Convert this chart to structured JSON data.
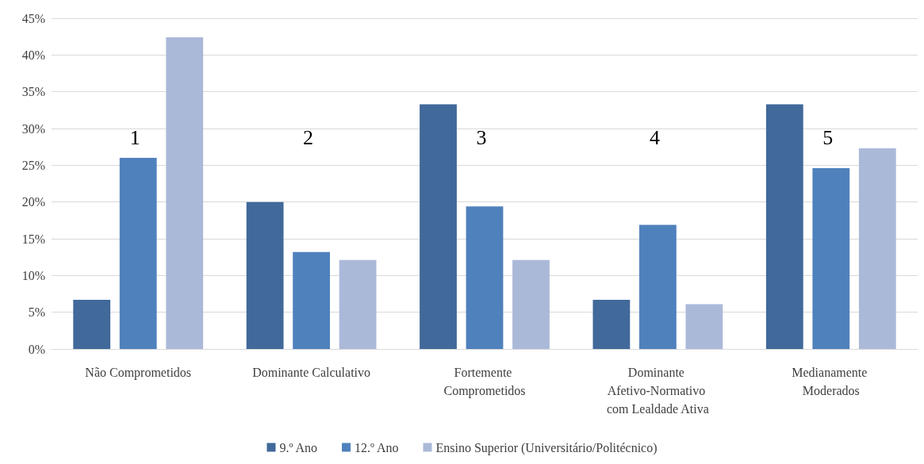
{
  "chart_data": {
    "type": "bar",
    "categories": [
      "Não Comprometidos",
      "Dominante Calculativo",
      "Fortemente Comprometidos",
      "Dominante Afetivo-Normativo com Lealdade Ativa",
      "Medianamente Moderados"
    ],
    "series": [
      {
        "name": "9.º Ano",
        "color": "#41699a",
        "values": [
          6.7,
          20,
          33.3,
          6.7,
          33.3
        ]
      },
      {
        "name": "12.º Ano",
        "color": "#4f81bd",
        "values": [
          26,
          13.2,
          19.4,
          16.9,
          24.6
        ]
      },
      {
        "name": "Ensino Superior (Universitário/Politécnico)",
        "color": "#abb9d9",
        "values": [
          42.4,
          12.1,
          12.1,
          6.1,
          27.3
        ]
      }
    ],
    "ylim": [
      0,
      45
    ],
    "yticks": [
      {
        "value": 0,
        "label": "0%"
      },
      {
        "value": 5,
        "label": "5%"
      },
      {
        "value": 10,
        "label": "10%"
      },
      {
        "value": 15,
        "label": "15%"
      },
      {
        "value": 20,
        "label": "20%"
      },
      {
        "value": 25,
        "label": "25%"
      },
      {
        "value": 30,
        "label": "30%"
      },
      {
        "value": 35,
        "label": "35%"
      },
      {
        "value": 40,
        "label": "40%"
      },
      {
        "value": 45,
        "label": "45%"
      }
    ],
    "grid": "y",
    "legend": "bottom",
    "annotations": [
      "1",
      "2",
      "3",
      "4",
      "5"
    ]
  }
}
